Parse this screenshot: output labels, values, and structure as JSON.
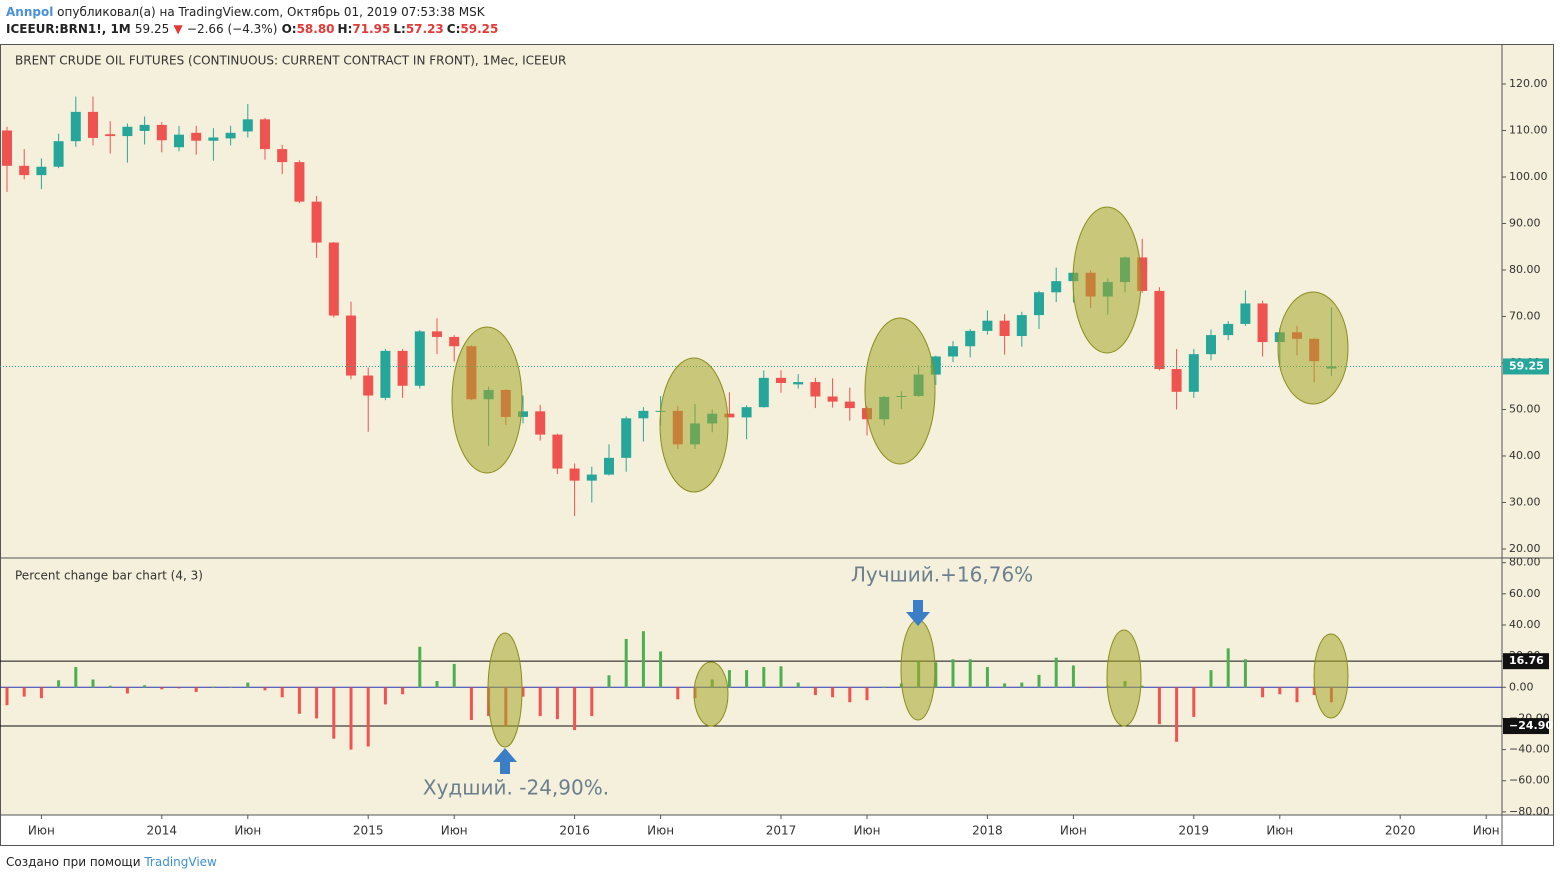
{
  "header": {
    "user": "Annpol",
    "published": "опубликовал(а) на TradingView.com, Октябрь 01, 2019 07:53:38 MSK",
    "symbol": "ICEEUR:BRN1!, 1M",
    "last": "59.25",
    "change_icon": "▼",
    "change": "−2.66 (−4.3%)",
    "quote": [
      {
        "label": "O:",
        "value": "58.80"
      },
      {
        "label": "H:",
        "value": "71.95"
      },
      {
        "label": "L:",
        "value": "57.23"
      },
      {
        "label": "C:",
        "value": "59.25"
      }
    ]
  },
  "footer": {
    "text": "Создано при помощи",
    "brand": "TradingView"
  },
  "chart_data": [
    {
      "type": "candlestick",
      "title": "BRENT CRUDE OIL FUTURES (CONTINUOUS: CURRENT CONTRACT IN FRONT), 1Мес, ICEEUR",
      "x": [
        "2013-04",
        "2013-05",
        "2013-06",
        "2013-07",
        "2013-08",
        "2013-09",
        "2013-10",
        "2013-11",
        "2013-12",
        "2014-01",
        "2014-02",
        "2014-03",
        "2014-04",
        "2014-05",
        "2014-06",
        "2014-07",
        "2014-08",
        "2014-09",
        "2014-10",
        "2014-11",
        "2014-12",
        "2015-01",
        "2015-02",
        "2015-03",
        "2015-04",
        "2015-05",
        "2015-06",
        "2015-07",
        "2015-08",
        "2015-09",
        "2015-10",
        "2015-11",
        "2015-12",
        "2016-01",
        "2016-02",
        "2016-03",
        "2016-04",
        "2016-05",
        "2016-06",
        "2016-07",
        "2016-08",
        "2016-09",
        "2016-10",
        "2016-11",
        "2016-12",
        "2017-01",
        "2017-02",
        "2017-03",
        "2017-04",
        "2017-05",
        "2017-06",
        "2017-07",
        "2017-08",
        "2017-09",
        "2017-10",
        "2017-11",
        "2017-12",
        "2018-01",
        "2018-02",
        "2018-03",
        "2018-04",
        "2018-05",
        "2018-06",
        "2018-07",
        "2018-08",
        "2018-09",
        "2018-10",
        "2018-11",
        "2018-12",
        "2019-01",
        "2019-02",
        "2019-03",
        "2019-04",
        "2019-05",
        "2019-06",
        "2019-07",
        "2019-08",
        "2019-09"
      ],
      "open": [
        110.0,
        102.4,
        100.4,
        102.2,
        107.7,
        114.0,
        109.2,
        108.8,
        109.9,
        111.2,
        106.4,
        109.5,
        107.8,
        108.3,
        109.8,
        112.4,
        106.0,
        103.2,
        94.7,
        85.9,
        70.2,
        57.3,
        52.5,
        62.6,
        55.1,
        66.8,
        65.6,
        63.6,
        52.2,
        54.2,
        48.4,
        49.6,
        44.6,
        37.3,
        34.7,
        36.0,
        39.6,
        48.1,
        49.6,
        49.7,
        42.5,
        47.0,
        49.1,
        48.3,
        50.5,
        56.8,
        55.4,
        55.9,
        52.8,
        51.7,
        50.3,
        47.9,
        52.7,
        52.9,
        57.5,
        61.4,
        63.6,
        66.9,
        69.1,
        65.8,
        70.3,
        75.2,
        77.6,
        79.4,
        74.3,
        77.4,
        82.7,
        75.5,
        58.7,
        53.8,
        61.9,
        66.0,
        68.4,
        72.8,
        64.5,
        66.6,
        65.2,
        58.8
      ],
      "high": [
        110.8,
        106.0,
        104.0,
        109.3,
        117.3,
        117.3,
        112.0,
        111.5,
        113.0,
        111.8,
        111.0,
        111.0,
        110.5,
        111.0,
        115.7,
        112.7,
        106.9,
        103.6,
        95.9,
        86.0,
        73.2,
        59.0,
        63.0,
        63.0,
        67.1,
        69.6,
        66.0,
        63.8,
        54.9,
        54.4,
        53.0,
        51.0,
        44.8,
        38.4,
        37.7,
        42.5,
        48.5,
        50.5,
        52.9,
        50.8,
        51.2,
        50.0,
        53.7,
        50.9,
        58.4,
        58.4,
        57.6,
        56.8,
        56.7,
        54.7,
        50.8,
        52.9,
        53.9,
        59.5,
        61.6,
        64.7,
        67.3,
        71.3,
        70.5,
        71.0,
        75.5,
        80.5,
        79.6,
        79.9,
        78.2,
        82.9,
        86.7,
        76.3,
        63.0,
        63.0,
        67.2,
        69.0,
        75.6,
        73.4,
        67.5,
        68.0,
        65.3,
        71.95
      ],
      "low": [
        96.8,
        99.5,
        97.4,
        101.9,
        106.5,
        106.8,
        105.0,
        103.1,
        107.0,
        105.3,
        105.5,
        104.8,
        103.5,
        106.8,
        108.5,
        103.7,
        100.6,
        94.4,
        82.6,
        69.8,
        56.5,
        45.2,
        52.0,
        52.5,
        54.5,
        61.9,
        60.3,
        52.0,
        42.2,
        46.7,
        47.0,
        43.3,
        36.1,
        27.1,
        30.0,
        35.8,
        36.6,
        43.1,
        46.6,
        41.5,
        41.5,
        45.1,
        48.4,
        43.6,
        50.4,
        53.6,
        54.5,
        50.3,
        50.4,
        47.6,
        44.4,
        46.6,
        50.1,
        52.7,
        55.3,
        60.2,
        61.2,
        66.1,
        61.8,
        63.5,
        67.3,
        73.1,
        73.0,
        71.8,
        70.4,
        75.2,
        75.1,
        58.4,
        50.0,
        52.5,
        60.6,
        64.9,
        68.0,
        61.4,
        59.5,
        61.6,
        55.9,
        57.23
      ],
      "close": [
        102.4,
        100.4,
        102.2,
        107.7,
        114.0,
        108.4,
        108.8,
        110.8,
        111.2,
        107.9,
        109.1,
        107.8,
        108.5,
        109.5,
        112.4,
        106.0,
        103.2,
        94.7,
        85.9,
        70.2,
        57.3,
        53.0,
        62.6,
        55.1,
        66.8,
        65.6,
        63.6,
        52.2,
        54.2,
        48.4,
        49.6,
        44.6,
        37.3,
        34.7,
        36.0,
        39.6,
        48.1,
        49.7,
        49.7,
        42.5,
        47.0,
        49.1,
        48.3,
        50.5,
        56.8,
        55.7,
        55.9,
        52.8,
        51.7,
        50.3,
        47.9,
        52.7,
        52.9,
        57.5,
        61.4,
        63.6,
        66.9,
        69.1,
        65.8,
        70.3,
        75.2,
        77.6,
        79.4,
        74.3,
        77.4,
        82.7,
        75.5,
        58.7,
        53.8,
        61.9,
        66.0,
        68.4,
        72.8,
        64.5,
        66.6,
        65.2,
        60.4,
        59.25
      ],
      "up_color": "#26a69a",
      "down_color": "#ef5350",
      "ylim": [
        18.06,
        128.6
      ],
      "yticks": [
        {
          "value": 20,
          "label": "20.00"
        },
        {
          "value": 30,
          "label": "30.00"
        },
        {
          "value": 40,
          "label": "40.00"
        },
        {
          "value": 50,
          "label": "50.00"
        },
        {
          "value": 60,
          "label": "60.00"
        },
        {
          "value": 70,
          "label": "70.00"
        },
        {
          "value": 80,
          "label": "80.00"
        },
        {
          "value": 90,
          "label": "90.00"
        },
        {
          "value": 100,
          "label": "100.00"
        },
        {
          "value": 110,
          "label": "110.00"
        },
        {
          "value": 120,
          "label": "120.00"
        }
      ],
      "xticks": [
        {
          "value": "2013-06",
          "label": "Июн"
        },
        {
          "value": "2014-01",
          "label": "2014"
        },
        {
          "value": "2014-06",
          "label": "Июн"
        },
        {
          "value": "2015-01",
          "label": "2015"
        },
        {
          "value": "2015-06",
          "label": "Июн"
        },
        {
          "value": "2016-01",
          "label": "2016"
        },
        {
          "value": "2016-06",
          "label": "Июн"
        },
        {
          "value": "2017-01",
          "label": "2017"
        },
        {
          "value": "2017-06",
          "label": "Июн"
        },
        {
          "value": "2018-01",
          "label": "2018"
        },
        {
          "value": "2018-06",
          "label": "Июн"
        },
        {
          "value": "2019-01",
          "label": "2019"
        },
        {
          "value": "2019-06",
          "label": "Июн"
        },
        {
          "value": "2020-01",
          "label": "2020"
        },
        {
          "value": "2020-06",
          "label": "Июн"
        }
      ]
    },
    {
      "type": "bar",
      "title": "Percent change bar chart (4, 3)",
      "values": [
        -11.5,
        -6,
        -7,
        4.5,
        13,
        5,
        1,
        -4,
        1.3,
        -1.3,
        -0.7,
        -3,
        0.5,
        0.3,
        3,
        -2,
        -6.4,
        -17,
        -20,
        -33,
        -40,
        -38,
        -11,
        -4.5,
        26,
        4,
        15,
        -21,
        -18.5,
        -24.9,
        -6,
        -18.5,
        -20.5,
        -27.5,
        -18.5,
        7.7,
        31,
        36,
        23,
        -7.7,
        -7,
        5,
        11,
        11,
        13,
        13.5,
        3,
        -5,
        -6.4,
        -9.6,
        -8.3,
        0.5,
        2.5,
        16.76,
        16,
        18,
        18,
        13,
        2.5,
        3,
        8,
        19,
        14,
        -0.5,
        1,
        4,
        1,
        -23.7,
        -35,
        -19,
        11,
        25,
        18,
        -6.4,
        -4.5,
        -9.6,
        -5,
        -9.6
      ],
      "up_color": "#4caf50",
      "down_color": "#f05350",
      "zero_color": "#2a35b8",
      "ylim": [
        -82,
        83
      ],
      "yticks": [
        {
          "value": -80,
          "label": "−80.00"
        },
        {
          "value": -60,
          "label": "−60.00"
        },
        {
          "value": -40,
          "label": "−40.00"
        },
        {
          "value": -20,
          "label": "−20.00"
        },
        {
          "value": 0,
          "label": "0.00"
        },
        {
          "value": 20,
          "label": "20.00"
        },
        {
          "value": 40,
          "label": "40.00"
        },
        {
          "value": 60,
          "label": "60.00"
        },
        {
          "value": 80,
          "label": "80.00"
        }
      ],
      "levels": [
        16.76,
        {
          "value": -24.9,
          "label": "−24.90"
        }
      ],
      "annotations": [
        {
          "text": "Лучший.+16,76%"
        },
        {
          "text": "Худший. -24,90%."
        }
      ]
    }
  ]
}
